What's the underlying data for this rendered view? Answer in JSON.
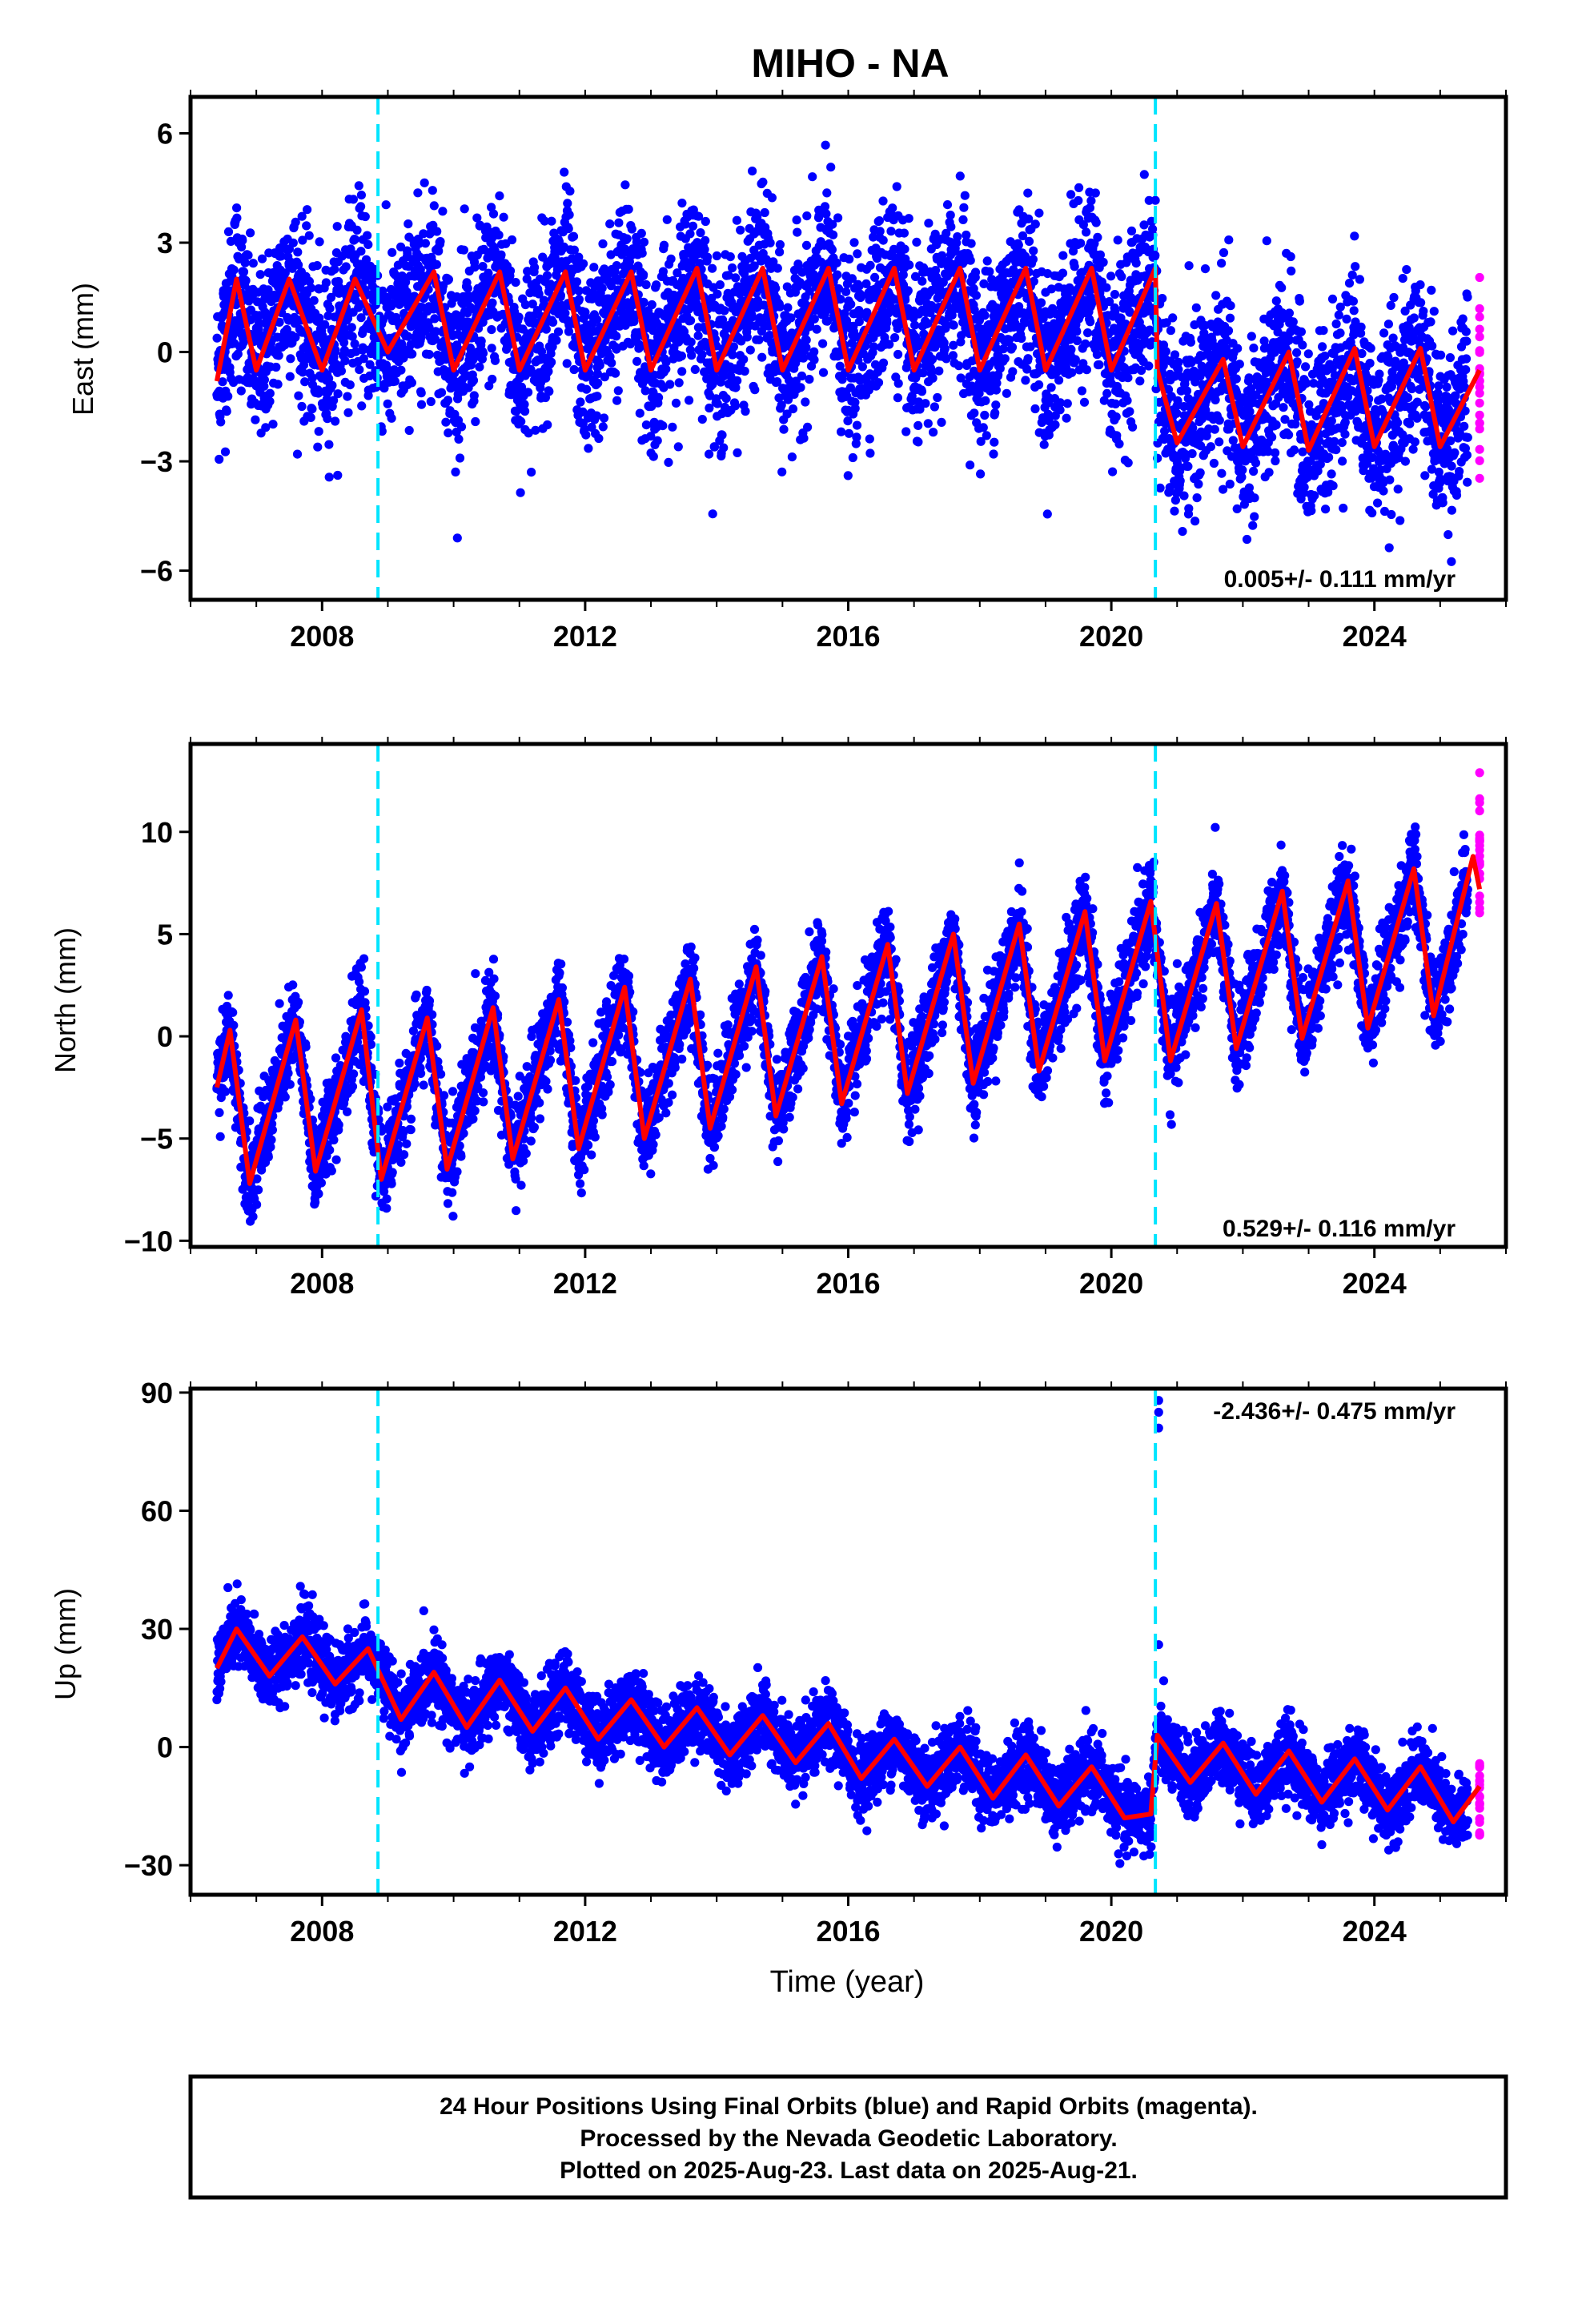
{
  "title": "MIHO - NA",
  "xlabel": "Time (year)",
  "footer": {
    "line1": "24 Hour Positions Using Final Orbits (blue) and Rapid Orbits (magenta).",
    "line2": "Processed by the Nevada Geodetic Laboratory.",
    "line3": "Plotted on 2025-Aug-23. Last data on 2025-Aug-21."
  },
  "colors": {
    "final_points": "#0000ff",
    "rapid_points": "#ff00ff",
    "model_fit": "#ff0000",
    "steps": "#00e5ff"
  },
  "chart_data": [
    {
      "type": "scatter",
      "component": "East",
      "ylabel": "East (mm)",
      "xlim": [
        2006.0,
        2026.0
      ],
      "ylim": [
        -6.8,
        7.0
      ],
      "xticks": [
        2008,
        2012,
        2016,
        2020,
        2024
      ],
      "xtick_labels": [
        "2008",
        "2012",
        "2016",
        "2020",
        "2024"
      ],
      "yticks": [
        -6,
        -3,
        0,
        3,
        6
      ],
      "ytick_labels": [
        "−6",
        "−3",
        "0",
        "3",
        "6"
      ],
      "rate_label": "0.005+/- 0.111 mm/yr",
      "rate_position": "bottom-right",
      "steps": [
        2008.85,
        2020.67
      ],
      "data_span": [
        2006.4,
        2025.6
      ],
      "rapid_span": [
        2025.42,
        2025.64
      ],
      "model": {
        "trend_mm_per_yr": 0.005,
        "offset_before_first_step": 0.0,
        "offset_second_step": -2.4,
        "annual_amplitude": 1.1,
        "semiannual_amplitude": 0.7,
        "scatter_sd": 1.2
      },
      "approx_fit_curve": {
        "x": [
          2006.4,
          2006.7,
          2007.0,
          2007.5,
          2008.0,
          2008.5,
          2009.0,
          2009.7,
          2010.0,
          2010.7,
          2011.0,
          2011.7,
          2012.0,
          2012.7,
          2013.0,
          2013.7,
          2014.0,
          2014.7,
          2015.0,
          2015.7,
          2016.0,
          2016.7,
          2017.0,
          2017.7,
          2018.0,
          2018.7,
          2019.0,
          2019.7,
          2020.0,
          2020.67,
          2020.7,
          2021.0,
          2021.7,
          2022.0,
          2022.7,
          2023.0,
          2023.7,
          2024.0,
          2024.7,
          2025.0,
          2025.6
        ],
        "y": [
          -0.8,
          2.0,
          -0.5,
          2.0,
          -0.5,
          2.0,
          0.0,
          2.2,
          -0.5,
          2.2,
          -0.5,
          2.2,
          -0.5,
          2.2,
          -0.5,
          2.3,
          -0.5,
          2.3,
          -0.5,
          2.3,
          -0.5,
          2.3,
          -0.5,
          2.3,
          -0.5,
          2.3,
          -0.5,
          2.3,
          -0.5,
          2.3,
          -0.5,
          -2.5,
          -0.2,
          -2.6,
          0.0,
          -2.7,
          0.1,
          -2.6,
          0.1,
          -2.6,
          -0.5
        ]
      }
    },
    {
      "type": "scatter",
      "component": "North",
      "ylabel": "North (mm)",
      "xlim": [
        2006.0,
        2026.0
      ],
      "ylim": [
        -10.3,
        14.3
      ],
      "xticks": [
        2008,
        2012,
        2016,
        2020,
        2024
      ],
      "xtick_labels": [
        "2008",
        "2012",
        "2016",
        "2020",
        "2024"
      ],
      "yticks": [
        -10,
        -5,
        0,
        5,
        10
      ],
      "ytick_labels": [
        "−10",
        "−5",
        "0",
        "5",
        "10"
      ],
      "rate_label": "0.529+/- 0.116 mm/yr",
      "rate_position": "bottom-right",
      "steps": [
        2008.85,
        2020.67
      ],
      "data_span": [
        2006.4,
        2025.6
      ],
      "rapid_span": [
        2025.42,
        2025.64
      ],
      "model": {
        "trend_mm_per_yr": 0.529,
        "offset_before_first_step": -3.3,
        "offset_second_step": 0.0,
        "annual_amplitude": 4.0,
        "semiannual_amplitude": 0.0,
        "scatter_sd": 1.1
      },
      "approx_fit_curve": {
        "x": [
          2006.4,
          2006.6,
          2006.9,
          2007.6,
          2007.9,
          2008.6,
          2008.9,
          2009.6,
          2009.9,
          2010.6,
          2010.9,
          2011.6,
          2011.9,
          2012.6,
          2012.9,
          2013.6,
          2013.9,
          2014.6,
          2014.9,
          2015.6,
          2015.9,
          2016.6,
          2016.9,
          2017.6,
          2017.9,
          2018.6,
          2018.9,
          2019.6,
          2019.9,
          2020.6,
          2020.9,
          2021.6,
          2021.9,
          2022.6,
          2022.9,
          2023.6,
          2023.9,
          2024.6,
          2024.9,
          2025.5,
          2025.6
        ],
        "y": [
          -2.5,
          0.3,
          -7.2,
          0.8,
          -6.6,
          1.3,
          -7.0,
          0.9,
          -6.5,
          1.4,
          -6.0,
          1.8,
          -5.5,
          2.4,
          -5.0,
          2.8,
          -4.5,
          3.4,
          -3.9,
          3.9,
          -3.3,
          4.5,
          -2.8,
          5.0,
          -2.3,
          5.5,
          -1.7,
          6.1,
          -1.2,
          6.6,
          -1.2,
          6.5,
          -0.6,
          7.1,
          -0.1,
          7.6,
          0.4,
          8.2,
          1.0,
          8.8,
          7.2
        ]
      }
    },
    {
      "type": "scatter",
      "component": "Up",
      "ylabel": "Up (mm)",
      "xlim": [
        2006.0,
        2026.0
      ],
      "ylim": [
        -37.5,
        91.0
      ],
      "xticks": [
        2008,
        2012,
        2016,
        2020,
        2024
      ],
      "xtick_labels": [
        "2008",
        "2012",
        "2016",
        "2020",
        "2024"
      ],
      "yticks": [
        -30,
        0,
        30,
        60,
        90
      ],
      "ytick_labels": [
        "−30",
        "0",
        "30",
        "60",
        "90"
      ],
      "rate_label": "-2.436+/- 0.475 mm/yr",
      "rate_position": "top-right",
      "steps": [
        2008.85,
        2020.67
      ],
      "data_span": [
        2006.4,
        2025.6
      ],
      "rapid_span": [
        2025.42,
        2025.64
      ],
      "model": {
        "trend_mm_per_yr": -2.436,
        "offset_before_first_step": 2.0,
        "offset_second_step": 18.0,
        "annual_amplitude": 6.5,
        "semiannual_amplitude": 0.0,
        "scatter_sd": 4.5
      },
      "outliers": {
        "x": [
          2020.72,
          2020.72,
          2020.72,
          2020.72
        ],
        "y": [
          88,
          85,
          81,
          26
        ]
      },
      "approx_fit_curve": {
        "x": [
          2006.4,
          2006.7,
          2007.2,
          2007.7,
          2008.2,
          2008.7,
          2009.2,
          2009.7,
          2010.2,
          2010.7,
          2011.2,
          2011.7,
          2012.2,
          2012.7,
          2013.2,
          2013.7,
          2014.2,
          2014.7,
          2015.2,
          2015.7,
          2016.2,
          2016.7,
          2017.2,
          2017.7,
          2018.2,
          2018.7,
          2019.2,
          2019.7,
          2020.2,
          2020.6,
          2020.7,
          2021.2,
          2021.7,
          2022.2,
          2022.7,
          2023.2,
          2023.7,
          2024.2,
          2024.7,
          2025.2,
          2025.6
        ],
        "y": [
          20,
          30,
          18,
          28,
          16,
          25,
          7,
          19,
          5,
          17,
          4,
          15,
          2,
          12,
          0,
          10,
          -2,
          8,
          -4,
          6,
          -8,
          2,
          -10,
          0,
          -13,
          -2,
          -15,
          -5,
          -18,
          -17,
          3,
          -9,
          1,
          -12,
          -1,
          -14,
          -3,
          -16,
          -5,
          -19,
          -10
        ]
      }
    }
  ]
}
